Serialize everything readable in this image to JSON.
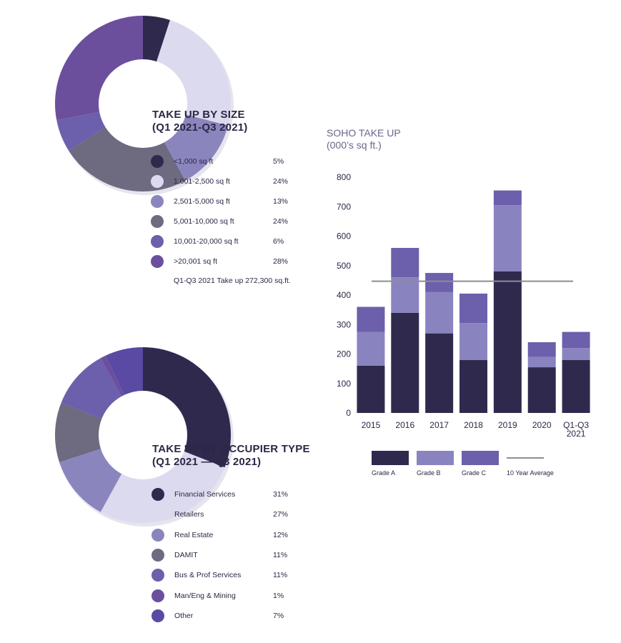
{
  "colors": {
    "grade_a": "#2f2a4d",
    "grade_b": "#8984c0",
    "grade_c": "#6c5fab",
    "avg_line": "#8e8e8e",
    "axis_text": "#2b2745"
  },
  "size_block": {
    "title_line1": "TAKE UP BY SIZE",
    "title_line2": "(Q1 2021-Q3 2021)",
    "note": "Q1-Q3 2021 Take up 272,300 sq.ft.",
    "items": [
      {
        "label": "<1,000 sq ft",
        "value": "5%",
        "color": "#2f2a4d"
      },
      {
        "label": "1,001-2,500 sq ft",
        "value": "24%",
        "color": "#dcdaee"
      },
      {
        "label": "2,501-5,000 sq ft",
        "value": "13%",
        "color": "#8a86bd"
      },
      {
        "label": "5,001-10,000 sq ft",
        "value": "24%",
        "color": "#6e6a7f"
      },
      {
        "label": "10,001-20,000 sq ft",
        "value": "6%",
        "color": "#6c5fab"
      },
      {
        "label": ">20,001 sq ft",
        "value": "28%",
        "color": "#6b4f9c"
      }
    ]
  },
  "occupier_block": {
    "title_line1": "TAKE UP BY OCCUPIER TYPE",
    "title_line2": "(Q1 2021 — Q3 2021)",
    "items": [
      {
        "label": "Financial Services",
        "value": "31%",
        "color": "#2f2a4d"
      },
      {
        "label": "Retailers",
        "value": "27%",
        "color": "#dcdaee"
      },
      {
        "label": "Real Estate",
        "value": "12%",
        "color": "#8a86bd"
      },
      {
        "label": "DAMIT",
        "value": "11%",
        "color": "#6e6a7f"
      },
      {
        "label": "Bus & Prof Services",
        "value": "11%",
        "color": "#6c5fab"
      },
      {
        "label": "Man/Eng & Mining",
        "value": "1%",
        "color": "#6b4f9c"
      },
      {
        "label": "Other",
        "value": "7%",
        "color": "#5a4aa3"
      }
    ]
  },
  "bar_block": {
    "title_line1": "SOHO TAKE UP",
    "title_line2": "(000’s sq ft.)"
  },
  "chart_data": [
    {
      "type": "pie",
      "title": "TAKE UP BY SIZE (Q1 2021-Q3 2021)",
      "categories": [
        "<1,000 sq ft",
        "1,001-2,500 sq ft",
        "2,501-5,000 sq ft",
        "5,001-10,000 sq ft",
        "10,001-20,000 sq ft",
        ">20,001 sq ft"
      ],
      "values": [
        5,
        24,
        13,
        24,
        6,
        28
      ]
    },
    {
      "type": "pie",
      "title": "TAKE UP BY OCCUPIER TYPE (Q1 2021 — Q3 2021)",
      "categories": [
        "Financial Services",
        "Retailers",
        "Real Estate",
        "DAMIT",
        "Bus & Prof Services",
        "Man/Eng & Mining",
        "Other"
      ],
      "values": [
        31,
        27,
        12,
        11,
        11,
        1,
        7
      ]
    },
    {
      "type": "bar",
      "stacked": true,
      "title": "SOHO TAKE UP",
      "subtitle": "(000’s sq ft.)",
      "categories": [
        "2015",
        "2016",
        "2017",
        "2018",
        "2019",
        "2020",
        "Q1-Q3 2021"
      ],
      "category_lines": [
        [
          "2015"
        ],
        [
          "2016"
        ],
        [
          "2017"
        ],
        [
          "2018"
        ],
        [
          "2019"
        ],
        [
          "2020"
        ],
        [
          "Q1-Q3",
          "2021"
        ]
      ],
      "series": [
        {
          "name": "Grade A",
          "values": [
            160,
            340,
            270,
            180,
            480,
            155,
            180
          ]
        },
        {
          "name": "Grade B",
          "values": [
            115,
            120,
            140,
            125,
            225,
            35,
            40
          ]
        },
        {
          "name": "Grade C",
          "values": [
            85,
            100,
            65,
            100,
            50,
            50,
            55
          ]
        }
      ],
      "reference_line": {
        "name": "10 Year Average",
        "value": 447
      },
      "ylim": [
        0,
        800
      ],
      "yticks": [
        0,
        100,
        200,
        300,
        400,
        500,
        600,
        700,
        800
      ],
      "grid": false,
      "legend": "bottom"
    }
  ]
}
